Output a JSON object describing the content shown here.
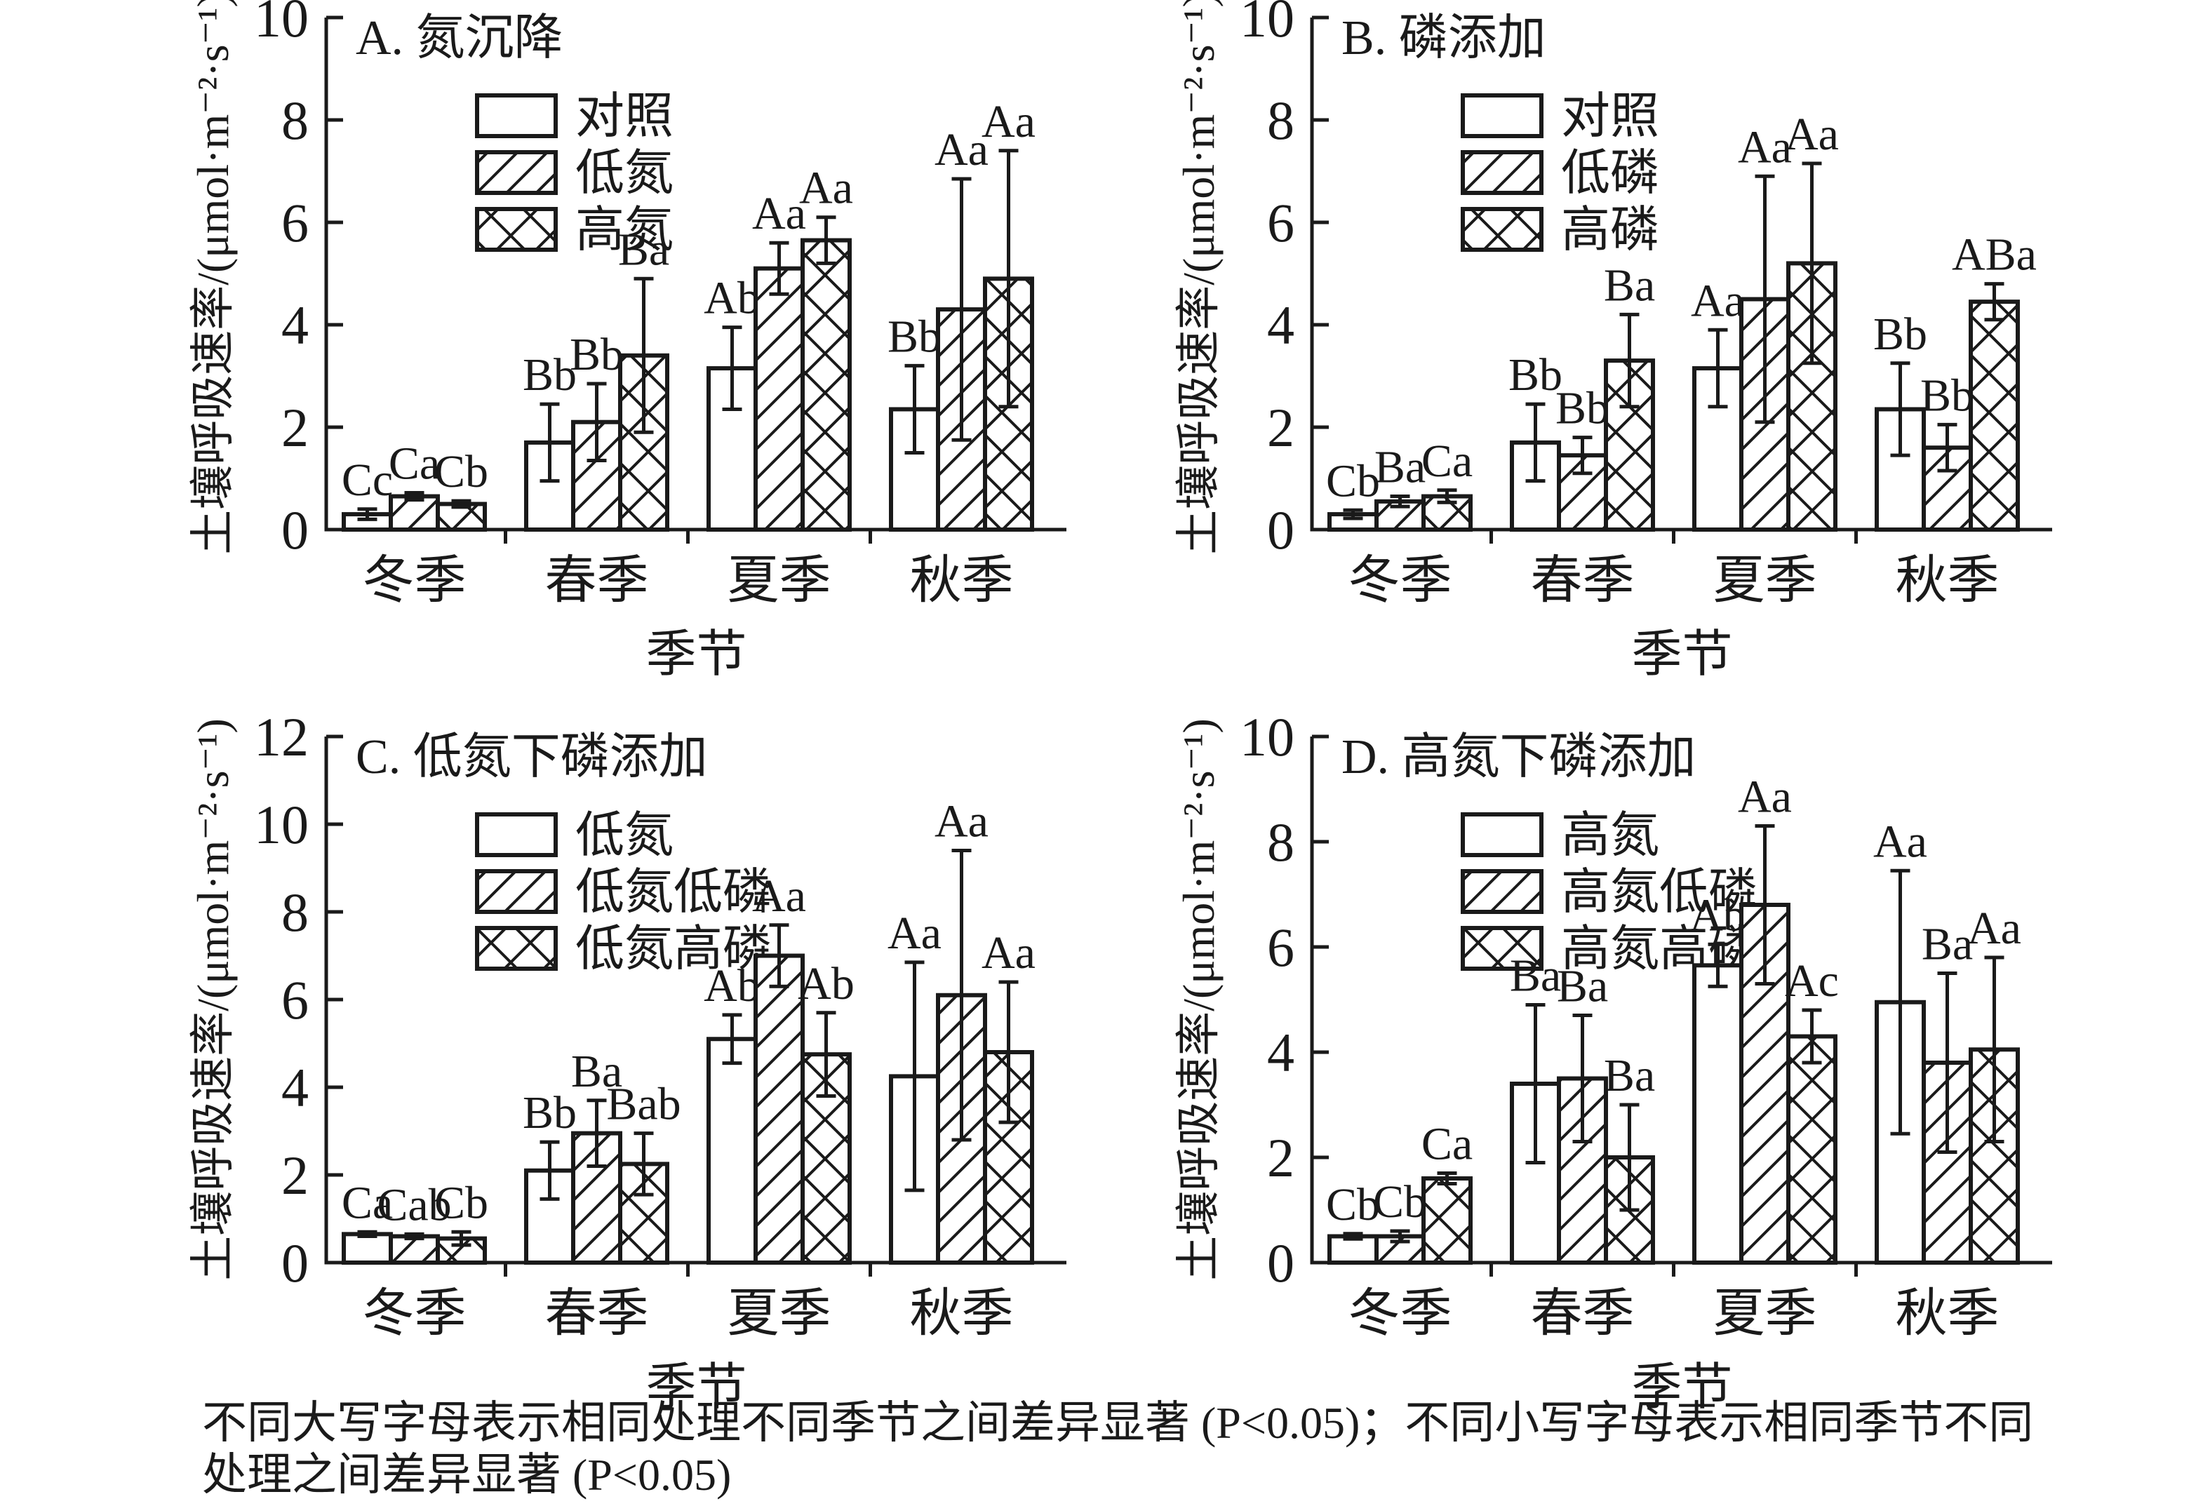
{
  "figure": {
    "background": "#ffffff",
    "ink_color": "#1a1a1a",
    "caption": {
      "line1": "不同大写字母表示相同处理不同季节之间差异显著 (P<0.05)；不同小写字母表示相同季节不同",
      "line2": "处理之间差异显著 (P<0.05)"
    }
  },
  "chart_data": [
    {
      "id": "A",
      "type": "bar",
      "title": "A. 氮沉降",
      "xlabel": "季节",
      "ylabel": "土壤呼吸速率/(μmol·m⁻²·s⁻¹)",
      "ylim": [
        0,
        10
      ],
      "ytick_step": 2,
      "grid": false,
      "legend_position": "inside-top-left",
      "categories": [
        "冬季",
        "春季",
        "夏季",
        "秋季"
      ],
      "series": [
        {
          "name": "对照",
          "hatch": "none",
          "values": [
            0.3,
            1.7,
            3.15,
            2.35
          ],
          "errors": [
            0.1,
            0.75,
            0.8,
            0.85
          ],
          "letters": [
            "Cc",
            "Bb",
            "Ab",
            "Bb"
          ]
        },
        {
          "name": "低氮",
          "hatch": "diagonal",
          "values": [
            0.65,
            2.1,
            5.1,
            4.3
          ],
          "errors": [
            0.07,
            0.75,
            0.5,
            2.55
          ],
          "letters": [
            "Ca",
            "Bb",
            "Aa",
            "Aa"
          ]
        },
        {
          "name": "高氮",
          "hatch": "cross",
          "values": [
            0.5,
            3.4,
            5.65,
            4.9
          ],
          "errors": [
            0.06,
            1.5,
            0.45,
            2.5
          ],
          "letters": [
            "Cb",
            "Ba",
            "Aa",
            "Aa"
          ]
        }
      ]
    },
    {
      "id": "B",
      "type": "bar",
      "title": "B. 磷添加",
      "xlabel": "季节",
      "ylabel": "土壤呼吸速率/(μmol·m⁻²·s⁻¹)",
      "ylim": [
        0,
        10
      ],
      "ytick_step": 2,
      "grid": false,
      "legend_position": "inside-top-left",
      "categories": [
        "冬季",
        "春季",
        "夏季",
        "秋季"
      ],
      "series": [
        {
          "name": "对照",
          "hatch": "none",
          "values": [
            0.3,
            1.7,
            3.15,
            2.35
          ],
          "errors": [
            0.08,
            0.75,
            0.75,
            0.9
          ],
          "letters": [
            "Cb",
            "Bb",
            "Aa",
            "Bb"
          ]
        },
        {
          "name": "低磷",
          "hatch": "diagonal",
          "values": [
            0.55,
            1.45,
            4.5,
            1.6
          ],
          "errors": [
            0.1,
            0.35,
            2.4,
            0.45
          ],
          "letters": [
            "Ba",
            "Bb",
            "Aa",
            "Bb"
          ]
        },
        {
          "name": "高磷",
          "hatch": "cross",
          "values": [
            0.65,
            3.3,
            5.2,
            4.45
          ],
          "errors": [
            0.12,
            0.9,
            1.95,
            0.35
          ],
          "letters": [
            "Ca",
            "Ba",
            "Aa",
            "ABa"
          ]
        }
      ]
    },
    {
      "id": "C",
      "type": "bar",
      "title": "C. 低氮下磷添加",
      "xlabel": "季节",
      "ylabel": "土壤呼吸速率/(μmol·m⁻²·s⁻¹)",
      "ylim": [
        0,
        12
      ],
      "ytick_step": 2,
      "grid": false,
      "legend_position": "inside-top-left",
      "categories": [
        "冬季",
        "春季",
        "夏季",
        "秋季"
      ],
      "series": [
        {
          "name": "低氮",
          "hatch": "none",
          "values": [
            0.65,
            2.1,
            5.1,
            4.25
          ],
          "errors": [
            0.05,
            0.65,
            0.55,
            2.6
          ],
          "letters": [
            "Ca",
            "Bb",
            "Ab",
            "Aa"
          ]
        },
        {
          "name": "低氮低磷",
          "hatch": "diagonal",
          "values": [
            0.6,
            2.95,
            7.0,
            6.1
          ],
          "errors": [
            0.05,
            0.75,
            0.7,
            3.3
          ],
          "letters": [
            "Cab",
            "Ba",
            "Aa",
            "Aa"
          ]
        },
        {
          "name": "低氮高磷",
          "hatch": "cross",
          "values": [
            0.55,
            2.25,
            4.75,
            4.8
          ],
          "errors": [
            0.15,
            0.7,
            0.95,
            1.6
          ],
          "letters": [
            "Cb",
            "Bab",
            "Ab",
            "Aa"
          ]
        }
      ]
    },
    {
      "id": "D",
      "type": "bar",
      "title": "D. 高氮下磷添加",
      "xlabel": "季节",
      "ylabel": "土壤呼吸速率/(μmol·m⁻²·s⁻¹)",
      "ylim": [
        0,
        10
      ],
      "ytick_step": 2,
      "grid": false,
      "legend_position": "inside-top-left",
      "categories": [
        "冬季",
        "春季",
        "夏季",
        "秋季"
      ],
      "series": [
        {
          "name": "高氮",
          "hatch": "none",
          "values": [
            0.5,
            3.4,
            5.65,
            4.95
          ],
          "errors": [
            0.05,
            1.5,
            0.4,
            2.5
          ],
          "letters": [
            "Cb",
            "Ba",
            "Ab",
            "Aa"
          ]
        },
        {
          "name": "高氮低磷",
          "hatch": "diagonal",
          "values": [
            0.5,
            3.5,
            6.8,
            3.8
          ],
          "errors": [
            0.1,
            1.2,
            1.5,
            1.7
          ],
          "letters": [
            "Cb",
            "Ba",
            "Aa",
            "Ba"
          ]
        },
        {
          "name": "高氮高磷",
          "hatch": "cross",
          "values": [
            1.6,
            2.0,
            4.3,
            4.05
          ],
          "errors": [
            0.1,
            1.0,
            0.5,
            1.75
          ],
          "letters": [
            "Ca",
            "Ba",
            "Ac",
            "Aa"
          ]
        }
      ]
    }
  ]
}
